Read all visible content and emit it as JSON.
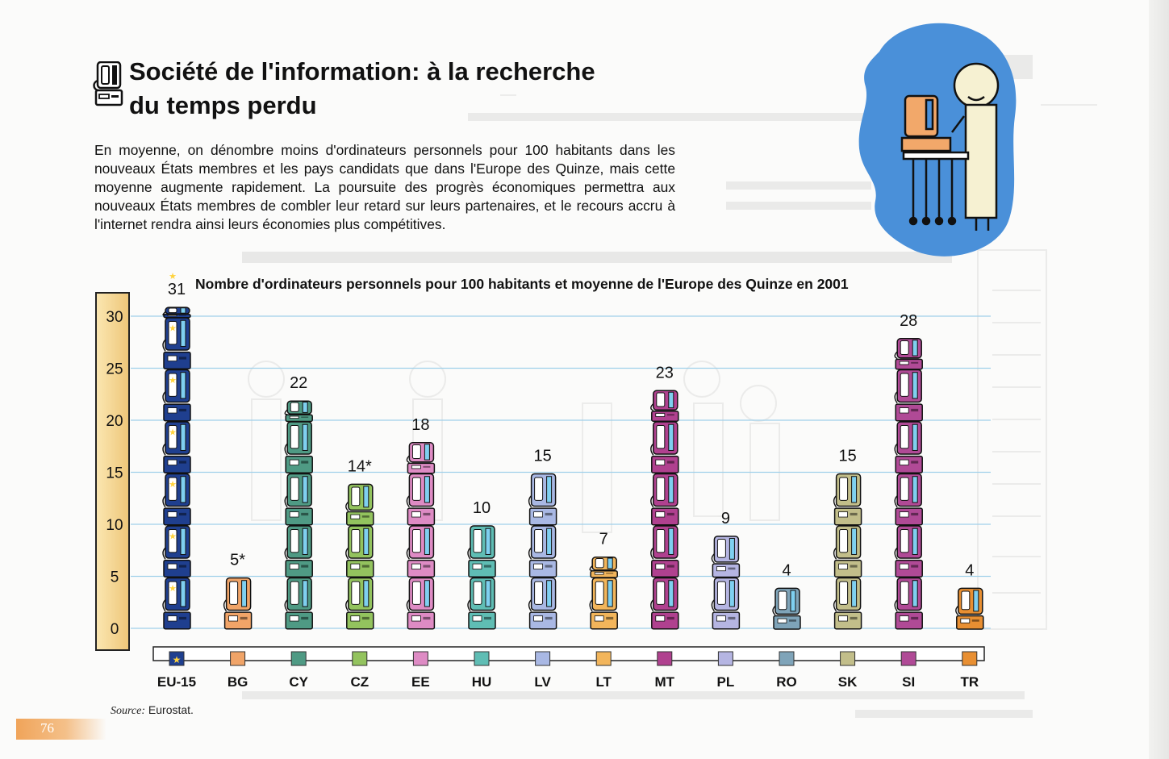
{
  "header": {
    "title": "Société de l'information: à la recherche du temps perdu",
    "intro": "En moyenne, on dénombre moins d'ordinateurs personnels pour 100 habitants dans les nouveaux États membres et les pays candidats que dans l'Europe des Quinze, mais cette moyenne augmente rapidement. La poursuite des progrès économiques permettra aux nouveaux États membres de combler leur retard sur leurs partenaires, et le recours accru à l'internet rendra ainsi leurs économies plus compétitives."
  },
  "source": {
    "label": "Source:",
    "text": "Eurostat."
  },
  "page_number": "76",
  "icons": [
    "computer-icon",
    "eu-stars-icon",
    "student-at-computer-illustration"
  ],
  "chart_data": {
    "type": "bar",
    "title": "Nombre d'ordinateurs personnels pour 100 habitants et moyenne de l'Europe des Quinze en 2001",
    "categories": [
      "EU-15",
      "BG",
      "CY",
      "CZ",
      "EE",
      "HU",
      "LV",
      "LT",
      "MT",
      "PL",
      "RO",
      "SK",
      "SI",
      "TR"
    ],
    "values": [
      31,
      5,
      22,
      14,
      18,
      10,
      15,
      7,
      23,
      9,
      4,
      15,
      28,
      4
    ],
    "value_labels": [
      "31",
      "5*",
      "22",
      "14*",
      "18",
      "10",
      "15",
      "7",
      "23",
      "9",
      "4",
      "15",
      "28",
      "4"
    ],
    "colors": [
      "#1f3f8f",
      "#f0a468",
      "#4f9a84",
      "#93c35e",
      "#de8bc4",
      "#5fbdb4",
      "#a9b8e4",
      "#f2b55b",
      "#b0418f",
      "#b5b5e2",
      "#7fa4b9",
      "#c2be8a",
      "#b04a96",
      "#e88f32"
    ],
    "yticks": [
      0,
      5,
      10,
      15,
      20,
      25,
      30
    ],
    "ylim": [
      0,
      30
    ],
    "grid": true,
    "pictogram_unit": "computer",
    "xlabel": "",
    "ylabel": ""
  }
}
